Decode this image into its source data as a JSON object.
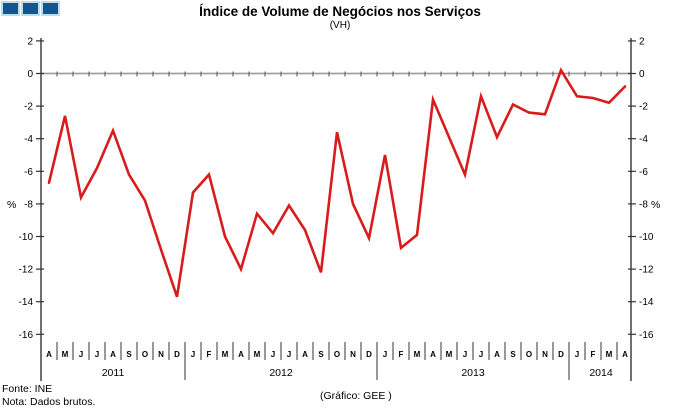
{
  "header": {
    "title": "Índice de Volume de Negócios nos Serviços",
    "subtitle": "(VH)"
  },
  "footer": {
    "source": "Fonte: INE",
    "note": "Nota: Dados brutos.",
    "credit": "(Gráfico: GEE )"
  },
  "chart_data": {
    "type": "line",
    "title": "Índice de Volume de Negócios nos Serviços",
    "subtitle": "(VH)",
    "ylabel_left": "%",
    "ylabel_right": "%",
    "ylim": [
      -16,
      2
    ],
    "yticks": [
      2,
      0,
      -2,
      -4,
      -6,
      -8,
      -10,
      -12,
      -14,
      -16
    ],
    "grid": "zero-line-only",
    "legend": "none",
    "line_color": "#D81C1C",
    "zero_line_color": "#A0A0A0",
    "axis_color": "#333333",
    "categories": [
      "A",
      "M",
      "J",
      "J",
      "A",
      "S",
      "O",
      "N",
      "D",
      "J",
      "F",
      "M",
      "A",
      "M",
      "J",
      "J",
      "A",
      "S",
      "O",
      "N",
      "D",
      "J",
      "F",
      "M",
      "A",
      "M",
      "J",
      "J",
      "A",
      "S",
      "O",
      "N",
      "D",
      "J",
      "F",
      "M",
      "A"
    ],
    "year_groups": [
      {
        "label": "2011",
        "months": 9
      },
      {
        "label": "2012",
        "months": 12
      },
      {
        "label": "2013",
        "months": 12
      },
      {
        "label": "2014",
        "months": 4
      }
    ],
    "series": [
      {
        "name": "Índice de Volume de Negócios nos Serviços (VH, %)",
        "values": [
          -6.7,
          -2.6,
          -7.6,
          -5.8,
          -3.5,
          -6.2,
          -7.8,
          -10.8,
          -13.7,
          -7.3,
          -6.2,
          -10.0,
          -12.0,
          -8.6,
          -9.8,
          -8.1,
          -9.6,
          -12.2,
          -3.6,
          -8.0,
          -10.1,
          -5.0,
          -10.7,
          -9.9,
          -1.6,
          -3.9,
          -6.2,
          -1.4,
          -3.9,
          -1.9,
          -2.4,
          -2.5,
          0.2,
          -1.4,
          -1.5,
          -1.8,
          -0.8
        ]
      }
    ]
  }
}
